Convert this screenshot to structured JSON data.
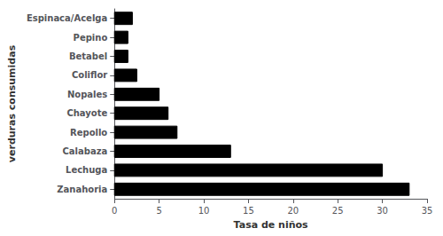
{
  "chart_data": {
    "type": "bar",
    "orientation": "horizontal",
    "categories": [
      "Zanahoria",
      "Lechuga",
      "Calabaza",
      "Repollo",
      "Chayote",
      "Nopales",
      "Coliflor",
      "Betabel",
      "Pepino",
      "Espinaca/Acelga"
    ],
    "values": [
      33,
      30,
      13,
      7,
      6,
      5,
      2.5,
      1.5,
      1.5,
      2
    ],
    "color": "#000000",
    "xlabel": "Tasa de niños",
    "ylabel": "verduras consumidas",
    "xlim": [
      0,
      35
    ],
    "xticks": [
      0,
      5,
      10,
      15,
      20,
      25,
      30,
      35
    ],
    "grid": false
  }
}
